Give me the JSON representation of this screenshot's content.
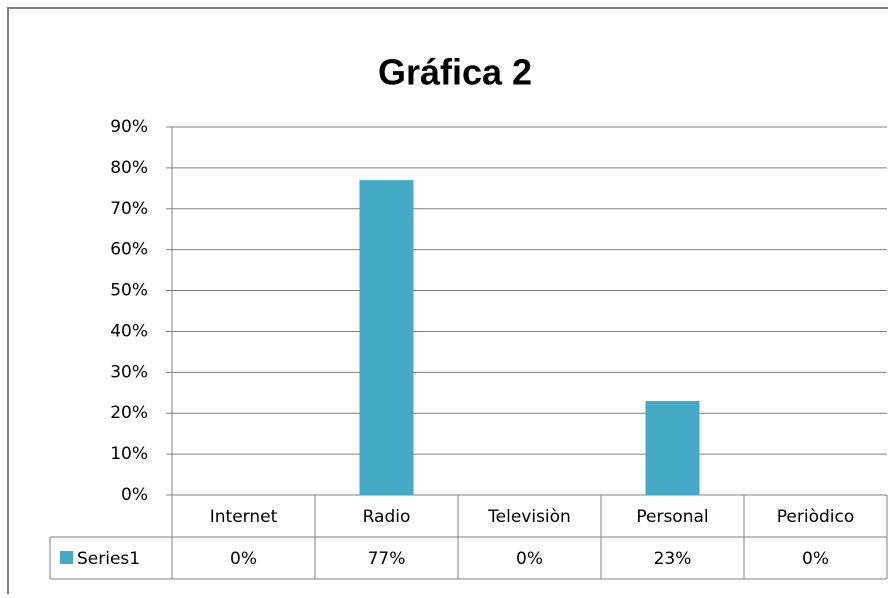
{
  "chart_data": {
    "type": "bar",
    "title": "Gráfica 2",
    "categories": [
      "Internet",
      "Radio",
      "Televisiòn",
      "Personal",
      "Periòdico"
    ],
    "series": [
      {
        "name": "Series1",
        "color": "#45aac6",
        "values": [
          0,
          77,
          0,
          23,
          0
        ],
        "value_labels": [
          "0%",
          "77%",
          "0%",
          "23%",
          "0%"
        ]
      }
    ],
    "ylim": [
      0,
      90
    ],
    "yticks": [
      {
        "value": 0,
        "label": "0%"
      },
      {
        "value": 10,
        "label": "10%"
      },
      {
        "value": 20,
        "label": "20%"
      },
      {
        "value": 30,
        "label": "30%"
      },
      {
        "value": 40,
        "label": "40%"
      },
      {
        "value": 50,
        "label": "50%"
      },
      {
        "value": 60,
        "label": "60%"
      },
      {
        "value": 70,
        "label": "70%"
      },
      {
        "value": 80,
        "label": "80%"
      },
      {
        "value": 90,
        "label": "90%"
      }
    ],
    "grid": true
  }
}
